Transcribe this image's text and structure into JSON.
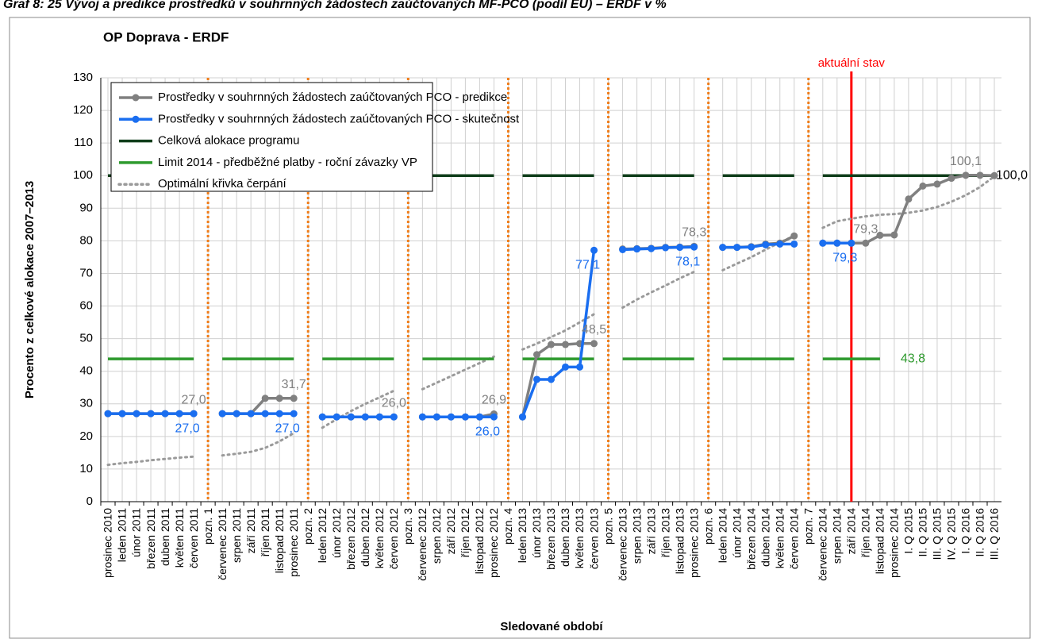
{
  "chart_data": {
    "type": "line",
    "title": "Graf 8: 25 Vývoj a predikce prostředků v souhrnných žádostech zaúčtovaných MF-PCO (podíl EU) – ERDF v %",
    "subtitle": "OP Doprava - ERDF",
    "y_label": "Procento z celkové alokace 2007–2013",
    "x_label": "Sledované období",
    "current_marker": {
      "label": "aktuální stav",
      "category": "září 2014",
      "color": "#ff0000"
    },
    "categories": [
      "prosinec 2010",
      "leden 2011",
      "únor 2011",
      "březen 2011",
      "duben 2011",
      "květen 2011",
      "červen 2011",
      "pozn. 1",
      "červenec 2011",
      "srpen 2011",
      "září 2011",
      "říjen 2011",
      "listopad 2011",
      "prosinec 2011",
      "pozn. 2",
      "leden 2012",
      "únor 2012",
      "březen 2012",
      "duben 2012",
      "květen 2012",
      "červen 2012",
      "pozn. 3",
      "červenec 2012",
      "srpen 2012",
      "září 2012",
      "říjen 2012",
      "listopad 2012",
      "prosinec 2012",
      "pozn. 4",
      "leden 2013",
      "únor 2013",
      "březen 2013",
      "duben 2013",
      "květen 2013",
      "červen 2013",
      "pozn. 5",
      "červenec 2013",
      "srpen 2013",
      "září 2013",
      "říjen 2013",
      "listopad 2013",
      "prosinec 2013",
      "pozn. 6",
      "leden 2014",
      "únor 2014",
      "březen 2014",
      "duben 2014",
      "květen 2014",
      "červen 2014",
      "pozn. 7",
      "červenec 2014",
      "srpen 2014",
      "září 2014",
      "říjen 2014",
      "listopad 2014",
      "prosinec 2014",
      "I. Q 2015",
      "II. Q 2015",
      "III. Q 2015",
      "IV. Q 2015",
      "I. Q 2016",
      "II. Q 2016",
      "III. Q 2016"
    ],
    "series": [
      {
        "name": "Prostředky v souhrnných žádostech zaúčtovaných PCO - predikce",
        "color": "#808080",
        "style": "marker",
        "values": [
          27,
          27,
          27,
          27,
          27,
          27,
          27,
          null,
          27,
          27,
          27,
          31.7,
          31.7,
          31.7,
          null,
          26,
          26,
          26,
          26,
          26,
          26,
          null,
          26,
          26,
          26,
          26,
          26,
          26.9,
          null,
          26,
          45.1,
          48.2,
          48.2,
          48.5,
          48.5,
          null,
          77.5,
          77.6,
          77.7,
          78,
          78.1,
          78.3,
          null,
          78,
          78,
          78.2,
          79,
          79.3,
          81.5,
          null,
          79.3,
          79.3,
          79.3,
          79.3,
          81.7,
          81.8,
          92.8,
          96.8,
          97.4,
          99.2,
          100.1,
          100.1,
          100.0
        ],
        "value_labels": [
          null,
          null,
          null,
          null,
          null,
          null,
          "27,0",
          null,
          null,
          null,
          null,
          null,
          null,
          "31,7",
          null,
          null,
          null,
          null,
          null,
          null,
          "26,0",
          null,
          null,
          null,
          null,
          null,
          null,
          "26,9",
          null,
          null,
          null,
          null,
          null,
          null,
          "48,5",
          null,
          null,
          null,
          null,
          null,
          null,
          "78,3",
          null,
          null,
          null,
          null,
          null,
          null,
          null,
          null,
          null,
          null,
          null,
          "79,3",
          null,
          null,
          null,
          null,
          null,
          null,
          "100,1",
          null,
          null
        ]
      },
      {
        "name": "Prostředky v souhrnných žádostech zaúčtovaných PCO - skutečnost",
        "color": "#1a6ef0",
        "style": "marker",
        "values": [
          27,
          27,
          27,
          27,
          27,
          27,
          27,
          null,
          27,
          27,
          27,
          27,
          27,
          27,
          null,
          26,
          26,
          26,
          26,
          26,
          26,
          null,
          26,
          26,
          26,
          26,
          26,
          26,
          null,
          26,
          37.5,
          37.5,
          41.3,
          41.3,
          77.1,
          null,
          77.3,
          77.5,
          77.6,
          77.9,
          78,
          78.1,
          null,
          78,
          78,
          78.1,
          78.8,
          79,
          79,
          null,
          79.3,
          79.3,
          79.3,
          null,
          null,
          null,
          null,
          null,
          null,
          null,
          null,
          null,
          null
        ],
        "value_labels": [
          null,
          null,
          null,
          null,
          null,
          null,
          "27,0",
          null,
          null,
          null,
          null,
          null,
          null,
          "27,0",
          null,
          null,
          null,
          null,
          null,
          null,
          null,
          null,
          null,
          null,
          null,
          null,
          null,
          "26,0",
          null,
          null,
          null,
          null,
          null,
          null,
          "77,1",
          null,
          null,
          null,
          null,
          null,
          null,
          "78,1",
          null,
          null,
          null,
          null,
          null,
          null,
          null,
          null,
          null,
          null,
          "79,3",
          null,
          null,
          null,
          null,
          null,
          null,
          null,
          null,
          null,
          null
        ]
      },
      {
        "name": "Celková alokace programu",
        "color": "#0f3d1a",
        "style": "solid",
        "values": [
          100,
          100,
          100,
          100,
          100,
          100,
          100,
          null,
          100,
          100,
          100,
          100,
          100,
          100,
          null,
          100,
          100,
          100,
          100,
          100,
          100,
          null,
          100,
          100,
          100,
          100,
          100,
          100,
          null,
          100,
          100,
          100,
          100,
          100,
          100,
          null,
          100,
          100,
          100,
          100,
          100,
          100,
          null,
          100,
          100,
          100,
          100,
          100,
          100,
          null,
          100,
          100,
          100,
          100,
          100,
          100,
          100,
          100,
          100,
          100,
          100,
          100,
          100.0
        ],
        "value_labels": [
          null,
          null,
          null,
          null,
          null,
          null,
          null,
          null,
          null,
          null,
          null,
          null,
          null,
          null,
          null,
          null,
          null,
          null,
          null,
          null,
          null,
          null,
          null,
          null,
          null,
          null,
          null,
          null,
          null,
          null,
          null,
          null,
          null,
          null,
          null,
          null,
          null,
          null,
          null,
          null,
          null,
          null,
          null,
          null,
          null,
          null,
          null,
          null,
          null,
          null,
          null,
          null,
          null,
          null,
          null,
          null,
          null,
          null,
          null,
          null,
          null,
          null,
          "100,0"
        ]
      },
      {
        "name": "Limit 2014 - předběžné platby - roční závazky VP",
        "color": "#2e9a2e",
        "style": "solid",
        "values": [
          43.8,
          43.8,
          43.8,
          43.8,
          43.8,
          43.8,
          43.8,
          null,
          43.8,
          43.8,
          43.8,
          43.8,
          43.8,
          43.8,
          null,
          43.8,
          43.8,
          43.8,
          43.8,
          43.8,
          43.8,
          null,
          43.8,
          43.8,
          43.8,
          43.8,
          43.8,
          43.8,
          null,
          43.8,
          43.8,
          43.8,
          43.8,
          43.8,
          43.8,
          null,
          43.8,
          43.8,
          43.8,
          43.8,
          43.8,
          43.8,
          null,
          43.8,
          43.8,
          43.8,
          43.8,
          43.8,
          43.8,
          null,
          43.8,
          43.8,
          43.8,
          43.8,
          43.8,
          null,
          null,
          null,
          null,
          null,
          null,
          null,
          null
        ],
        "value_labels": [
          null,
          null,
          null,
          null,
          null,
          null,
          null,
          null,
          null,
          null,
          null,
          null,
          null,
          null,
          null,
          null,
          null,
          null,
          null,
          null,
          null,
          null,
          null,
          null,
          null,
          null,
          null,
          null,
          null,
          null,
          null,
          null,
          null,
          null,
          null,
          null,
          null,
          null,
          null,
          null,
          null,
          null,
          null,
          null,
          null,
          null,
          null,
          null,
          null,
          null,
          null,
          null,
          null,
          null,
          "43,8",
          null,
          null,
          null,
          null,
          null,
          null,
          null,
          null
        ]
      },
      {
        "name": "Optimální křivka čerpání",
        "color": "#9a9a9a",
        "style": "dotted",
        "values": [
          11.3,
          11.8,
          12.2,
          12.7,
          13.1,
          13.5,
          13.8,
          null,
          14.2,
          14.7,
          15.3,
          16.5,
          18.5,
          21,
          null,
          22.7,
          25.3,
          27.8,
          30,
          32,
          34,
          null,
          34.5,
          36.5,
          38.5,
          40.5,
          42.5,
          44.5,
          null,
          46.7,
          48.5,
          50.5,
          52.5,
          55,
          57.5,
          null,
          59.5,
          62,
          64.2,
          66.3,
          68.5,
          70.5,
          null,
          71,
          73,
          75,
          77.3,
          79.5,
          81.5,
          null,
          84,
          86,
          86.8,
          87.5,
          88,
          88.2,
          88.6,
          89.3,
          90.4,
          92,
          94,
          96.5,
          99.8
        ],
        "value_labels": null
      }
    ],
    "ylim": [
      0,
      130
    ],
    "yticks": [
      0,
      10,
      20,
      30,
      40,
      50,
      60,
      70,
      80,
      90,
      100,
      110,
      120,
      130
    ],
    "grid": true,
    "legend": "top-left",
    "separator_color": "#f07d1a"
  }
}
